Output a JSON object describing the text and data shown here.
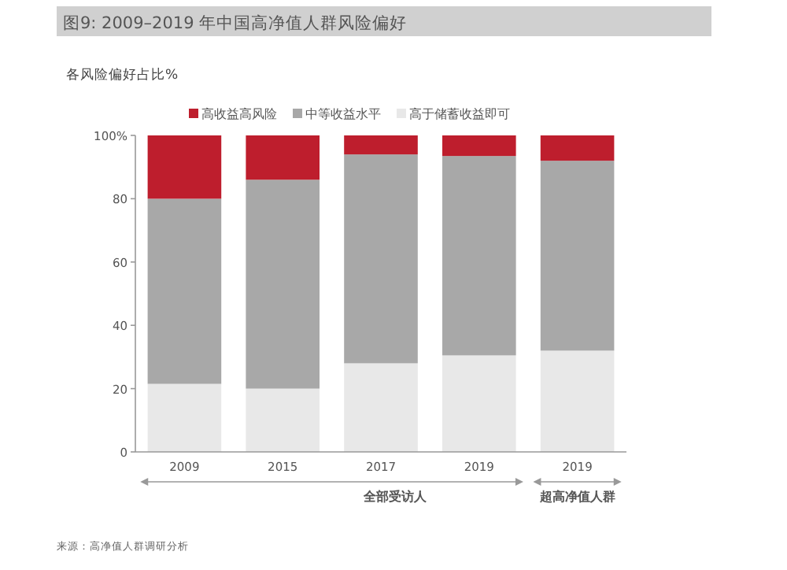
{
  "chart_data": {
    "type": "bar",
    "stacked": true,
    "title": "图9: 2009–2019 年中国高净值人群风险偏好",
    "ylabel": "各风险偏好占比%",
    "categories": [
      "2009",
      "2015",
      "2017",
      "2019",
      "2019"
    ],
    "series": [
      {
        "name": "高于储蓄收益即可",
        "color": "#e8e8e8",
        "values": [
          21.5,
          20,
          28,
          30.5,
          32
        ]
      },
      {
        "name": "中等收益水平",
        "color": "#a8a8a8",
        "values": [
          58.5,
          66,
          66,
          63,
          60
        ]
      },
      {
        "name": "高收益高风险",
        "color": "#be1e2d",
        "values": [
          20,
          14,
          6,
          6.5,
          8
        ]
      }
    ],
    "ylim": [
      0,
      100
    ],
    "yticks": [
      0,
      20,
      40,
      60,
      80,
      {
        "value": 100,
        "label": "100%"
      }
    ],
    "grid": false,
    "legend": "top",
    "annotations": [
      "全部受访人",
      "超高净值人群",
      "来源：高净值人群调研分析"
    ]
  }
}
